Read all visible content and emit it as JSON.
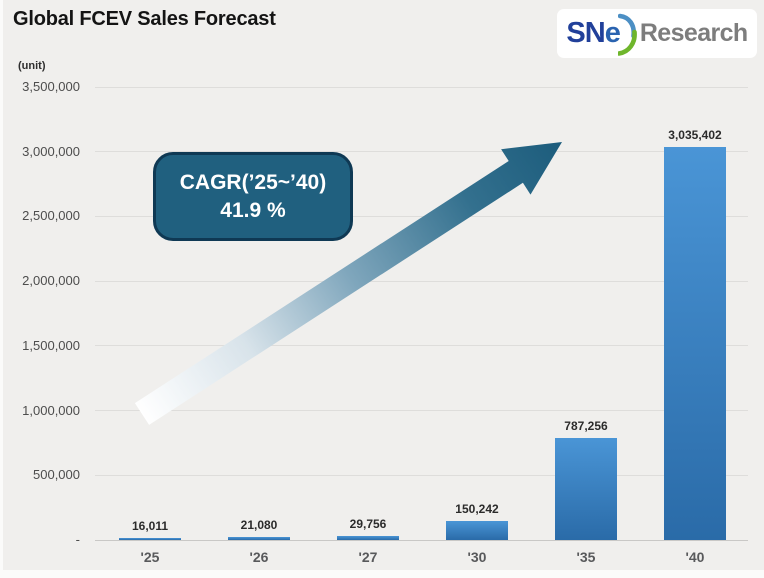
{
  "header": {
    "title": "Global FCEV Sales Forecast"
  },
  "logo": {
    "sn": "SN",
    "e": "e",
    "research": "Research",
    "sn_color": "#21409A",
    "e_color": "#2A63B0",
    "swoosh_blue": "#4C8FC4",
    "swoosh_green": "#6FB62C",
    "research_color": "#7D7D7D"
  },
  "annotation": {
    "line1": "CAGR(’25~’40)",
    "line2": "41.9 %",
    "fill": "#20607F",
    "border": "#0F3954"
  },
  "arrow": {
    "gradient": [
      "#FFFFFF",
      "#D8E3EA",
      "#7FA6BC",
      "#33708E",
      "#1C5C7C"
    ]
  },
  "chart_data": {
    "type": "bar",
    "title": "Global FCEV Sales Forecast",
    "unit_label": "(unit)",
    "categories": [
      "'25",
      "'26",
      "'27",
      "'30",
      "'35",
      "'40"
    ],
    "values": [
      16011,
      21080,
      29756,
      150242,
      787256,
      3035402
    ],
    "value_labels": [
      "16,011",
      "21,080",
      "29,756",
      "150,242",
      "787,256",
      "3,035,402"
    ],
    "ylim": [
      0,
      3500000
    ],
    "ytick_step": 500000,
    "ytick_labels": [
      "-",
      "500,000",
      "1,000,000",
      "1,500,000",
      "2,000,000",
      "2,500,000",
      "3,000,000",
      "3,500,000"
    ],
    "grid": "horizontal",
    "legend": "none",
    "bar_color_top": "#4A95D6",
    "bar_color_bottom": "#2A6BA8",
    "annotation_text": "CAGR(’25~’40) 41.9 %"
  }
}
